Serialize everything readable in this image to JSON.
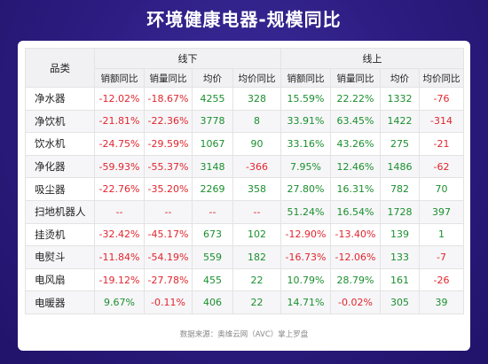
{
  "title": "环境健康电器-规模同比",
  "table": {
    "category_header": "品类",
    "group_offline": "线下",
    "group_online": "线上",
    "sub_headers": [
      "销额同比",
      "销量同比",
      "均价",
      "均价同比",
      "销额同比",
      "销量同比",
      "均价",
      "均价同比"
    ],
    "rows": [
      {
        "name": "净水器",
        "cells": [
          "-12.02%",
          "-18.67%",
          "4255",
          "328",
          "15.59%",
          "22.22%",
          "1332",
          "-76"
        ]
      },
      {
        "name": "净饮机",
        "cells": [
          "-21.81%",
          "-22.36%",
          "3778",
          "8",
          "33.91%",
          "63.45%",
          "1422",
          "-314"
        ]
      },
      {
        "name": "饮水机",
        "cells": [
          "-24.75%",
          "-29.59%",
          "1067",
          "90",
          "33.16%",
          "43.26%",
          "275",
          "-21"
        ]
      },
      {
        "name": "净化器",
        "cells": [
          "-59.93%",
          "-55.37%",
          "3148",
          "-366",
          "7.95%",
          "12.46%",
          "1486",
          "-62"
        ]
      },
      {
        "name": "吸尘器",
        "cells": [
          "-22.76%",
          "-35.20%",
          "2269",
          "358",
          "27.80%",
          "16.31%",
          "782",
          "70"
        ]
      },
      {
        "name": "扫地机器人",
        "cells": [
          "--",
          "--",
          "--",
          "--",
          "51.24%",
          "16.54%",
          "1728",
          "397"
        ]
      },
      {
        "name": "挂烫机",
        "cells": [
          "-32.42%",
          "-45.17%",
          "673",
          "102",
          "-12.90%",
          "-13.40%",
          "139",
          "1"
        ]
      },
      {
        "name": "电熨斗",
        "cells": [
          "-11.84%",
          "-54.19%",
          "559",
          "182",
          "-16.73%",
          "-12.06%",
          "133",
          "-7"
        ]
      },
      {
        "name": "电风扇",
        "cells": [
          "-19.12%",
          "-27.78%",
          "455",
          "22",
          "10.79%",
          "28.79%",
          "161",
          "-26"
        ]
      },
      {
        "name": "电暖器",
        "cells": [
          "9.67%",
          "-0.11%",
          "406",
          "22",
          "14.71%",
          "-0.02%",
          "305",
          "39"
        ]
      }
    ]
  },
  "colors": {
    "negative": "#e0262e",
    "positive": "#1a8f2e",
    "background": "#2e1e82"
  },
  "source": "数据来源：奥维云网（AVC）掌上罗盘"
}
